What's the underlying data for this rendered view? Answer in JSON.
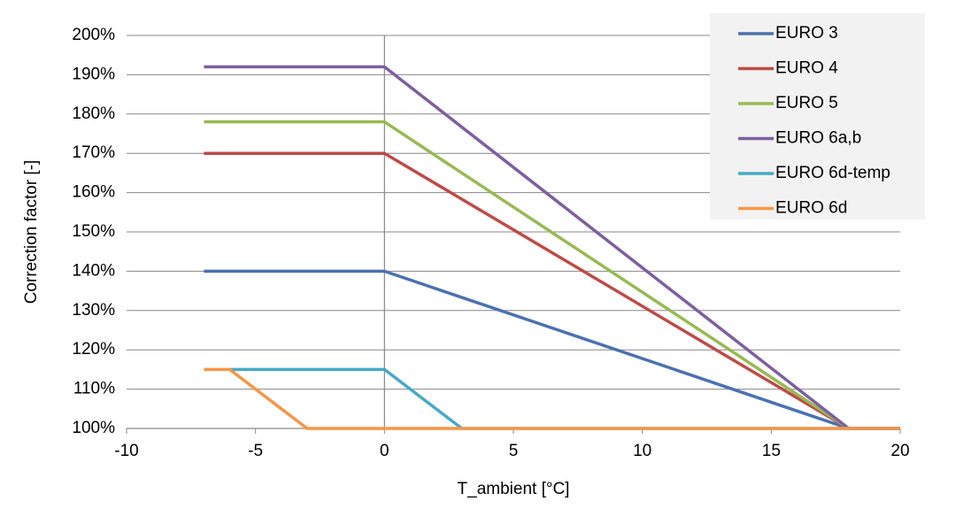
{
  "chart_data": {
    "type": "line",
    "x_label": "T_ambient [°C]",
    "y_label": "Correction factor [-]",
    "xlim": [
      -10,
      20
    ],
    "xticks": [
      -10,
      -5,
      0,
      5,
      10,
      15,
      20
    ],
    "ylim": [
      100,
      200
    ],
    "yticks": [
      {
        "value": 100,
        "label": "100%"
      },
      {
        "value": 110,
        "label": "110%"
      },
      {
        "value": 120,
        "label": "120%"
      },
      {
        "value": 130,
        "label": "130%"
      },
      {
        "value": 140,
        "label": "140%"
      },
      {
        "value": 150,
        "label": "150%"
      },
      {
        "value": 160,
        "label": "160%"
      },
      {
        "value": 170,
        "label": "170%"
      },
      {
        "value": 180,
        "label": "180%"
      },
      {
        "value": 190,
        "label": "190%"
      },
      {
        "value": 200,
        "label": "200%"
      }
    ],
    "grid": true,
    "legend": "top-right",
    "series": [
      {
        "name": "EURO 3",
        "color": "#4a72b0",
        "x": [
          -7,
          0,
          18,
          20
        ],
        "values": [
          140,
          140,
          100,
          100
        ]
      },
      {
        "name": "EURO 4",
        "color": "#be4b48",
        "x": [
          -7,
          0,
          18,
          20
        ],
        "values": [
          170,
          170,
          100,
          100
        ]
      },
      {
        "name": "EURO 5",
        "color": "#98b954",
        "x": [
          -7,
          0,
          18,
          20
        ],
        "values": [
          178,
          178,
          100,
          100
        ]
      },
      {
        "name": "EURO 6a,b",
        "color": "#7d5fa0",
        "x": [
          -7,
          0,
          18,
          20
        ],
        "values": [
          192,
          192,
          100,
          100
        ]
      },
      {
        "name": "EURO 6d-temp",
        "color": "#46aac5",
        "x": [
          -6,
          0,
          3,
          20
        ],
        "values": [
          115,
          115,
          100,
          100
        ]
      },
      {
        "name": "EURO 6d",
        "color": "#f79646",
        "x": [
          -7,
          -6,
          -3,
          20
        ],
        "values": [
          115,
          115,
          100,
          100
        ]
      }
    ]
  }
}
